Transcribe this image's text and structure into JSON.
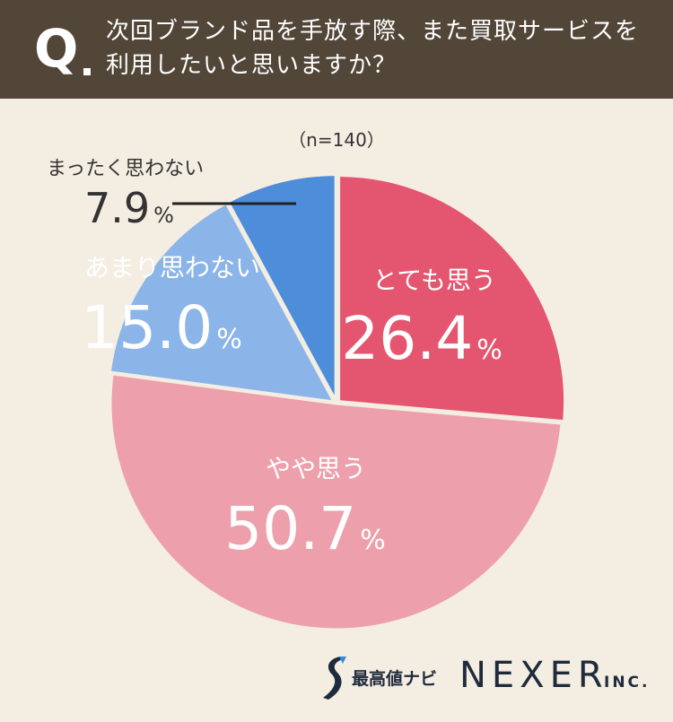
{
  "header": {
    "q_mark": "Q",
    "question": "次回ブランド品を手放す際、また買取サービスを利用したいと思いますか？"
  },
  "chart_data": {
    "type": "pie",
    "sample_size_label": "（n=140）",
    "unit": "%",
    "slices": [
      {
        "label": "とても思う",
        "value": 26.4,
        "value_text": "26.4",
        "color": "#e4566f",
        "text_color": "#ffffff",
        "exploded": true
      },
      {
        "label": "やや思う",
        "value": 50.7,
        "value_text": "50.7",
        "color": "#eda0ab",
        "text_color": "#ffffff",
        "exploded": false
      },
      {
        "label": "あまり思わない",
        "value": 15.0,
        "value_text": "15.0",
        "color": "#8bb4e8",
        "text_color": "#ffffff",
        "exploded": true
      },
      {
        "label": "まったく思わない",
        "value": 7.9,
        "value_text": "7.9",
        "color": "#4e8dd9",
        "text_color": "#333333",
        "exploded": true
      }
    ],
    "start_angle": "12 o'clock",
    "direction": "clockwise"
  },
  "footer": {
    "brand_jp": "最高値ナビ",
    "company": "NEXER",
    "company_suffix": "INC."
  }
}
